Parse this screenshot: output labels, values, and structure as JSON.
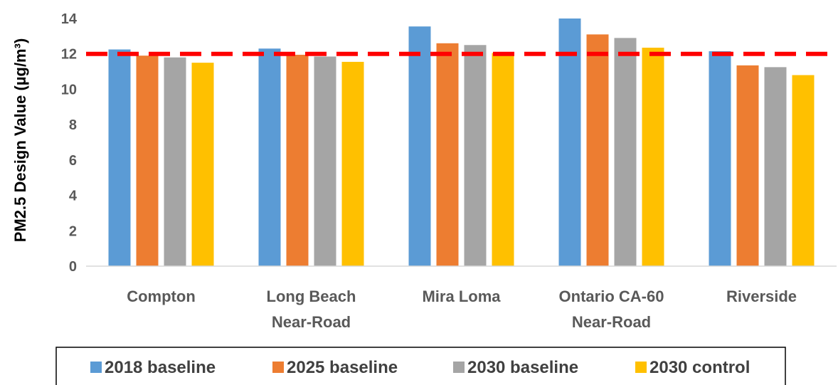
{
  "chart_data": {
    "type": "bar",
    "title": "",
    "xlabel": "",
    "ylabel": "PM2.5 Design Value (µg/m³)",
    "ylim": [
      0,
      14
    ],
    "yticks": [
      0,
      2,
      4,
      6,
      8,
      10,
      12,
      14
    ],
    "grid": false,
    "legend_position": "bottom",
    "categories": [
      [
        "Compton"
      ],
      [
        "Long Beach",
        "Near-Road"
      ],
      [
        "Mira Loma"
      ],
      [
        "Ontario CA-60",
        "Near-Road"
      ],
      [
        "Riverside"
      ]
    ],
    "series": [
      {
        "name": "2018 baseline",
        "color": "#5B9BD5",
        "values": [
          12.25,
          12.3,
          13.55,
          14.0,
          12.15
        ]
      },
      {
        "name": "2025 baseline",
        "color": "#ED7D31",
        "values": [
          11.9,
          11.95,
          12.6,
          13.1,
          11.35
        ]
      },
      {
        "name": "2030 baseline",
        "color": "#A5A5A5",
        "values": [
          11.8,
          11.85,
          12.5,
          12.9,
          11.25
        ]
      },
      {
        "name": "2030 control",
        "color": "#FFC000",
        "values": [
          11.5,
          11.55,
          12.05,
          12.35,
          10.8
        ]
      }
    ],
    "reference_line": {
      "value": 12,
      "color": "#FF0000",
      "style": "dashed"
    }
  }
}
